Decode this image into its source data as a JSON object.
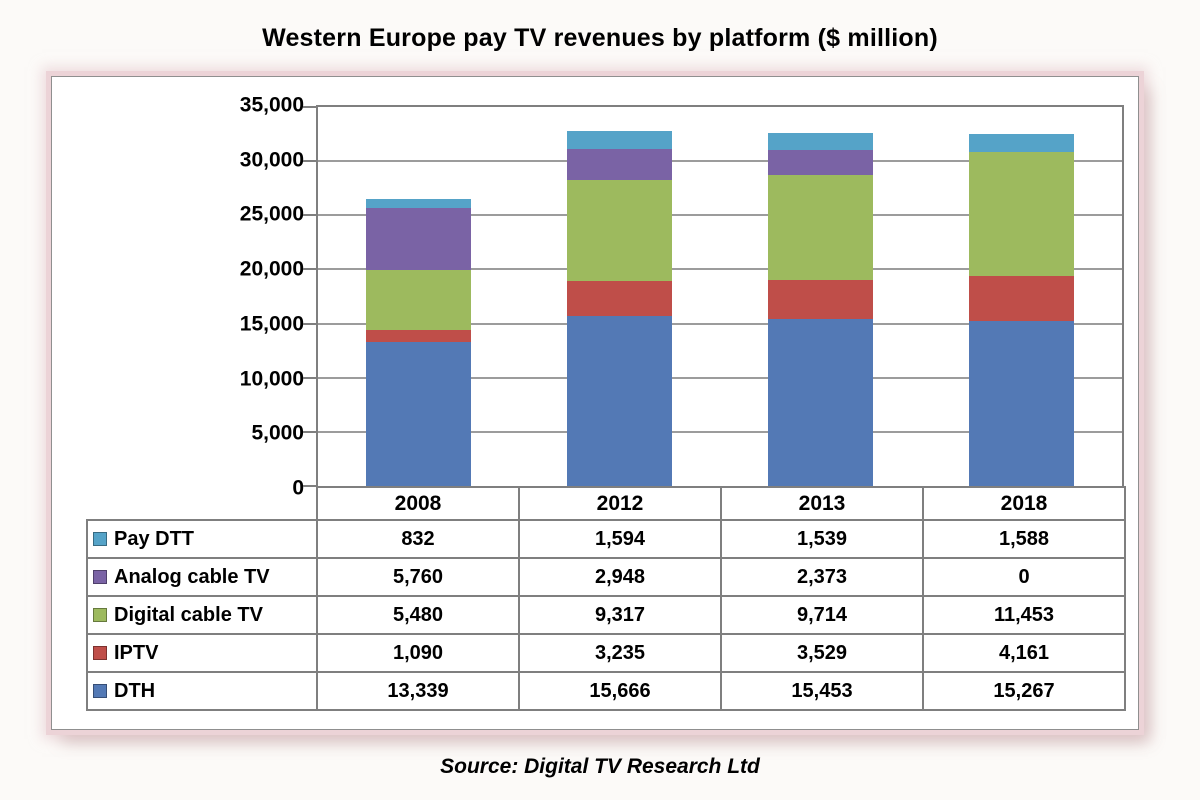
{
  "page": {
    "background": "#fcfaf8"
  },
  "chart_data": {
    "type": "bar",
    "stacked": true,
    "title": "Western Europe pay TV revenues by platform ($ million)",
    "source": "Source: Digital TV Research Ltd",
    "categories": [
      "2008",
      "2012",
      "2013",
      "2018"
    ],
    "series": [
      {
        "name": "Pay DTT",
        "color": "#55a3c8",
        "values": [
          832,
          1594,
          1539,
          1588
        ]
      },
      {
        "name": "Analog cable TV",
        "color": "#7a63a5",
        "values": [
          5760,
          2948,
          2373,
          0
        ]
      },
      {
        "name": "Digital cable TV",
        "color": "#9dba5e",
        "values": [
          5480,
          9317,
          9714,
          11453
        ]
      },
      {
        "name": "IPTV",
        "color": "#bf4e49",
        "values": [
          1090,
          3235,
          3529,
          4161
        ]
      },
      {
        "name": "DTH",
        "color": "#5379b5",
        "values": [
          13339,
          15666,
          15453,
          15267
        ]
      }
    ],
    "stack_order_bottom_to_top": [
      "DTH",
      "IPTV",
      "Digital cable TV",
      "Analog cable TV",
      "Pay DTT"
    ],
    "ylim": [
      0,
      35000
    ],
    "ytick_step": 5000,
    "yticks": [
      "0",
      "5,000",
      "10,000",
      "15,000",
      "20,000",
      "25,000",
      "30,000",
      "35,000"
    ],
    "grid": "horizontal-only",
    "legend_position": "table-left-column",
    "axis_color": "#7f7f7f",
    "gridline_color": "#9c9c9c",
    "panel_border_pink": "#ecd3d7"
  }
}
